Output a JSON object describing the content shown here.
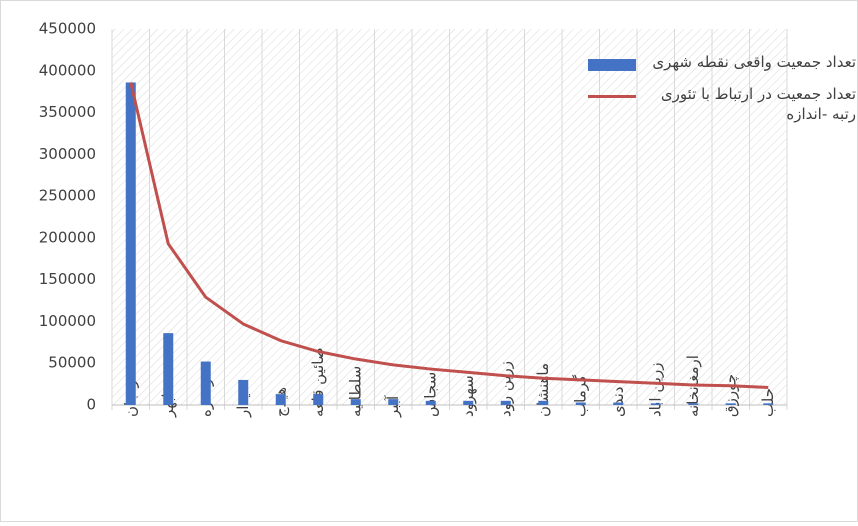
{
  "chart_data": {
    "type": "combo",
    "categories": [
      "زنجان",
      "ابهر",
      "خرمدره",
      "قیدار",
      "هیدج",
      "صائین قلعه",
      "سلطانیه",
      "آببر",
      "سجاس",
      "سهرود",
      "زرین رود",
      "ماهنشان",
      "گرماب",
      "دندی",
      "زرین اباد",
      "ارمغانخانه",
      "چورزق",
      "حلب"
    ],
    "series": [
      {
        "name": "تعداد جمعیت واقعی نقطه شهری",
        "type": "bar",
        "color": "#4472c4",
        "values": [
          386000,
          86000,
          52000,
          30000,
          13000,
          13000,
          7000,
          7000,
          5000,
          5000,
          5000,
          5000,
          3000,
          3000,
          2000,
          2000,
          2000,
          2000
        ]
      },
      {
        "name": "تعداد جمعیت در ارتباط با تئوری رتبه -اندازه",
        "type": "line",
        "color": "#c0504d",
        "values": [
          386000,
          193000,
          129000,
          97000,
          77000,
          64000,
          55000,
          48000,
          43000,
          39000,
          35000,
          32000,
          30000,
          28000,
          26000,
          24000,
          23000,
          21000
        ]
      }
    ],
    "ylim": [
      0,
      450000
    ],
    "yticks": [
      0,
      50000,
      100000,
      150000,
      200000,
      250000,
      300000,
      350000,
      400000,
      450000
    ],
    "legend": "top-right"
  }
}
